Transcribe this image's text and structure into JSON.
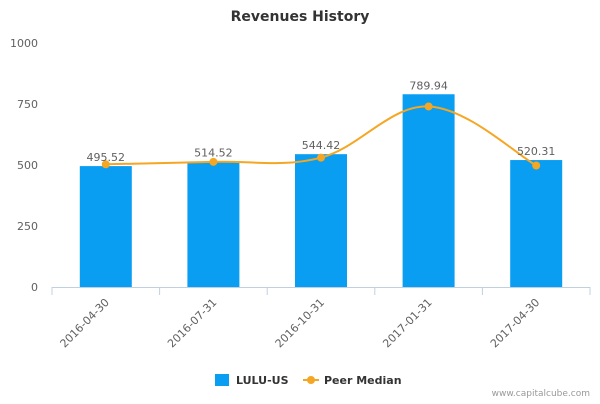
{
  "chart_data": {
    "type": "bar",
    "title": "Revenues History",
    "categories": [
      "2016-04-30",
      "2016-07-31",
      "2016-10-31",
      "2017-01-31",
      "2017-04-30"
    ],
    "series": [
      {
        "name": "LULU-US",
        "type": "bar",
        "color": "#0a9ef2",
        "values": [
          495.52,
          514.52,
          544.42,
          789.94,
          520.31
        ],
        "labels": [
          "495.52",
          "514.52",
          "544.42",
          "789.94",
          "520.31"
        ]
      },
      {
        "name": "Peer Median",
        "type": "line",
        "color": "#f5a623",
        "values": [
          503,
          513,
          530,
          740,
          498
        ]
      }
    ],
    "yticks": [
      "0",
      "250",
      "500",
      "750",
      "1000"
    ],
    "ylim": [
      0,
      1000
    ],
    "xlabel": "",
    "ylabel": "",
    "grid": false,
    "legend": "bottom-center"
  },
  "credit": "www.capitalcube.com"
}
